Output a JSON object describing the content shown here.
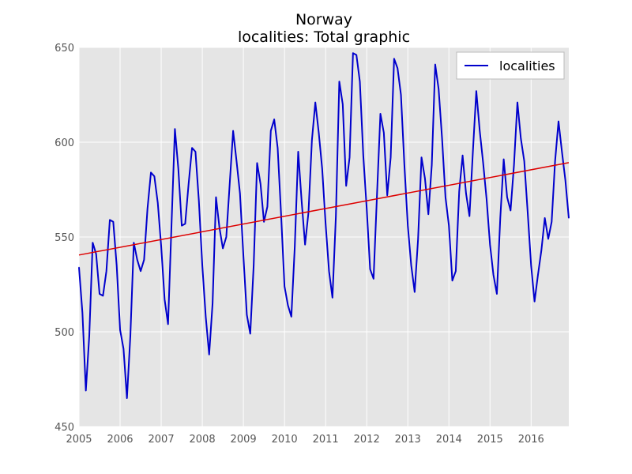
{
  "chart_data": {
    "type": "line",
    "title": "Norway",
    "subtitle": "localities: Total graphic",
    "xlabel": "",
    "ylabel": "",
    "xlim": [
      2005.0,
      2016.917
    ],
    "ylim": [
      450,
      650
    ],
    "x_ticks": [
      "2005",
      "2006",
      "2007",
      "2008",
      "2009",
      "2010",
      "2011",
      "2012",
      "2013",
      "2014",
      "2015",
      "2016"
    ],
    "y_ticks": [
      "450",
      "500",
      "550",
      "600",
      "650"
    ],
    "grid": true,
    "legend": {
      "position": "top-right",
      "entries": [
        "localities"
      ]
    },
    "colors": {
      "background": "#e5e5e5",
      "grid": "#ffffff",
      "series": "#0000cc",
      "trend": "#dd0000"
    },
    "series": [
      {
        "name": "localities",
        "x_start": "2005-01",
        "frequency": "monthly",
        "values": [
          534,
          510,
          469,
          498,
          547,
          541,
          520,
          519,
          532,
          559,
          558,
          535,
          501,
          491,
          465,
          498,
          547,
          538,
          532,
          538,
          565,
          584,
          582,
          568,
          545,
          517,
          504,
          556,
          607,
          586,
          556,
          557,
          578,
          597,
          595,
          569,
          535,
          508,
          488,
          515,
          571,
          555,
          544,
          550,
          578,
          606,
          590,
          573,
          540,
          509,
          499,
          535,
          589,
          578,
          558,
          566,
          606,
          612,
          597,
          562,
          524,
          514,
          508,
          545,
          595,
          569,
          546,
          563,
          601,
          621,
          605,
          586,
          557,
          532,
          518,
          561,
          632,
          620,
          577,
          592,
          647,
          646,
          632,
          593,
          565,
          533,
          528,
          572,
          615,
          605,
          572,
          592,
          644,
          639,
          625,
          588,
          556,
          535,
          521,
          549,
          592,
          581,
          562,
          588,
          641,
          628,
          602,
          571,
          556,
          527,
          532,
          574,
          593,
          573,
          561,
          595,
          627,
          606,
          589,
          570,
          546,
          530,
          520,
          560,
          591,
          571,
          564,
          588,
          621,
          602,
          590,
          563,
          535,
          516,
          530,
          543,
          560,
          549,
          558,
          590,
          611,
          595,
          580,
          560
        ]
      },
      {
        "name": "",
        "kind": "linear trend",
        "x": [
          "2005-01",
          "2016-12"
        ],
        "values": [
          540.5,
          589.2
        ]
      }
    ]
  }
}
